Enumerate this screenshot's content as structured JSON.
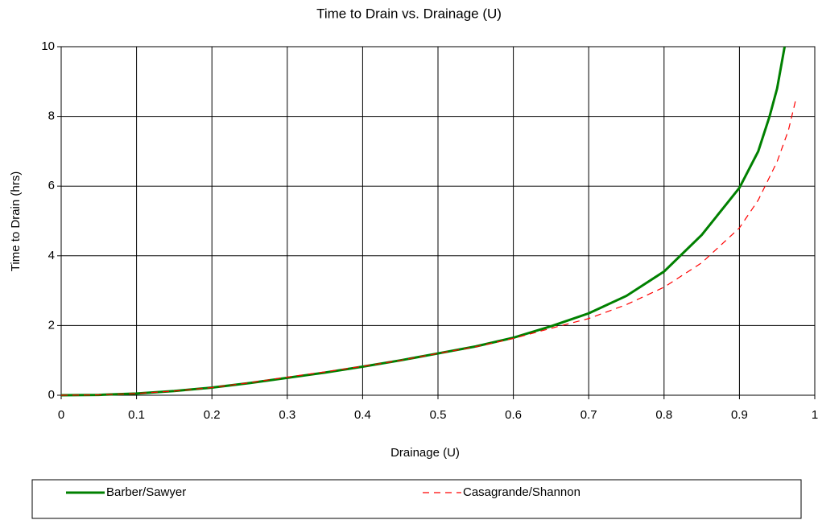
{
  "chart_data": {
    "type": "line",
    "title": "Time to Drain vs. Drainage (U)",
    "x_label": "Drainage (U)",
    "y_label": "Time to Drain (hrs)",
    "xlim": [
      0,
      1
    ],
    "xticks": [
      0,
      0.1,
      0.2,
      0.3,
      0.4,
      0.5,
      0.6,
      0.7,
      0.8,
      0.9,
      1
    ],
    "ylim": [
      0,
      10
    ],
    "yticks": [
      0,
      2,
      4,
      6,
      8,
      10
    ],
    "grid": true,
    "legend": "bottom",
    "series": [
      {
        "name": "Barber/Sawyer",
        "color": "#008000",
        "dash": "solid",
        "x": [
          0,
          0.05,
          0.1,
          0.15,
          0.2,
          0.25,
          0.3,
          0.35,
          0.4,
          0.45,
          0.5,
          0.55,
          0.6,
          0.65,
          0.7,
          0.75,
          0.8,
          0.85,
          0.9,
          0.925,
          0.94,
          0.95,
          0.96
        ],
        "values": [
          0,
          0.01,
          0.05,
          0.12,
          0.22,
          0.35,
          0.5,
          0.65,
          0.82,
          1.0,
          1.2,
          1.4,
          1.65,
          1.98,
          2.35,
          2.85,
          3.55,
          4.6,
          5.95,
          7.0,
          8.0,
          8.8,
          10.0
        ]
      },
      {
        "name": "Casagrande/Shannon",
        "color": "#ff0000",
        "dash": "dashed",
        "x": [
          0,
          0.05,
          0.1,
          0.15,
          0.2,
          0.25,
          0.3,
          0.35,
          0.4,
          0.45,
          0.5,
          0.55,
          0.6,
          0.65,
          0.7,
          0.75,
          0.8,
          0.85,
          0.9,
          0.925,
          0.95,
          0.965,
          0.975
        ],
        "values": [
          0,
          0.01,
          0.05,
          0.12,
          0.22,
          0.36,
          0.52,
          0.67,
          0.83,
          1.0,
          1.2,
          1.39,
          1.63,
          1.92,
          2.2,
          2.6,
          3.1,
          3.8,
          4.8,
          5.6,
          6.7,
          7.6,
          8.5
        ]
      }
    ]
  }
}
